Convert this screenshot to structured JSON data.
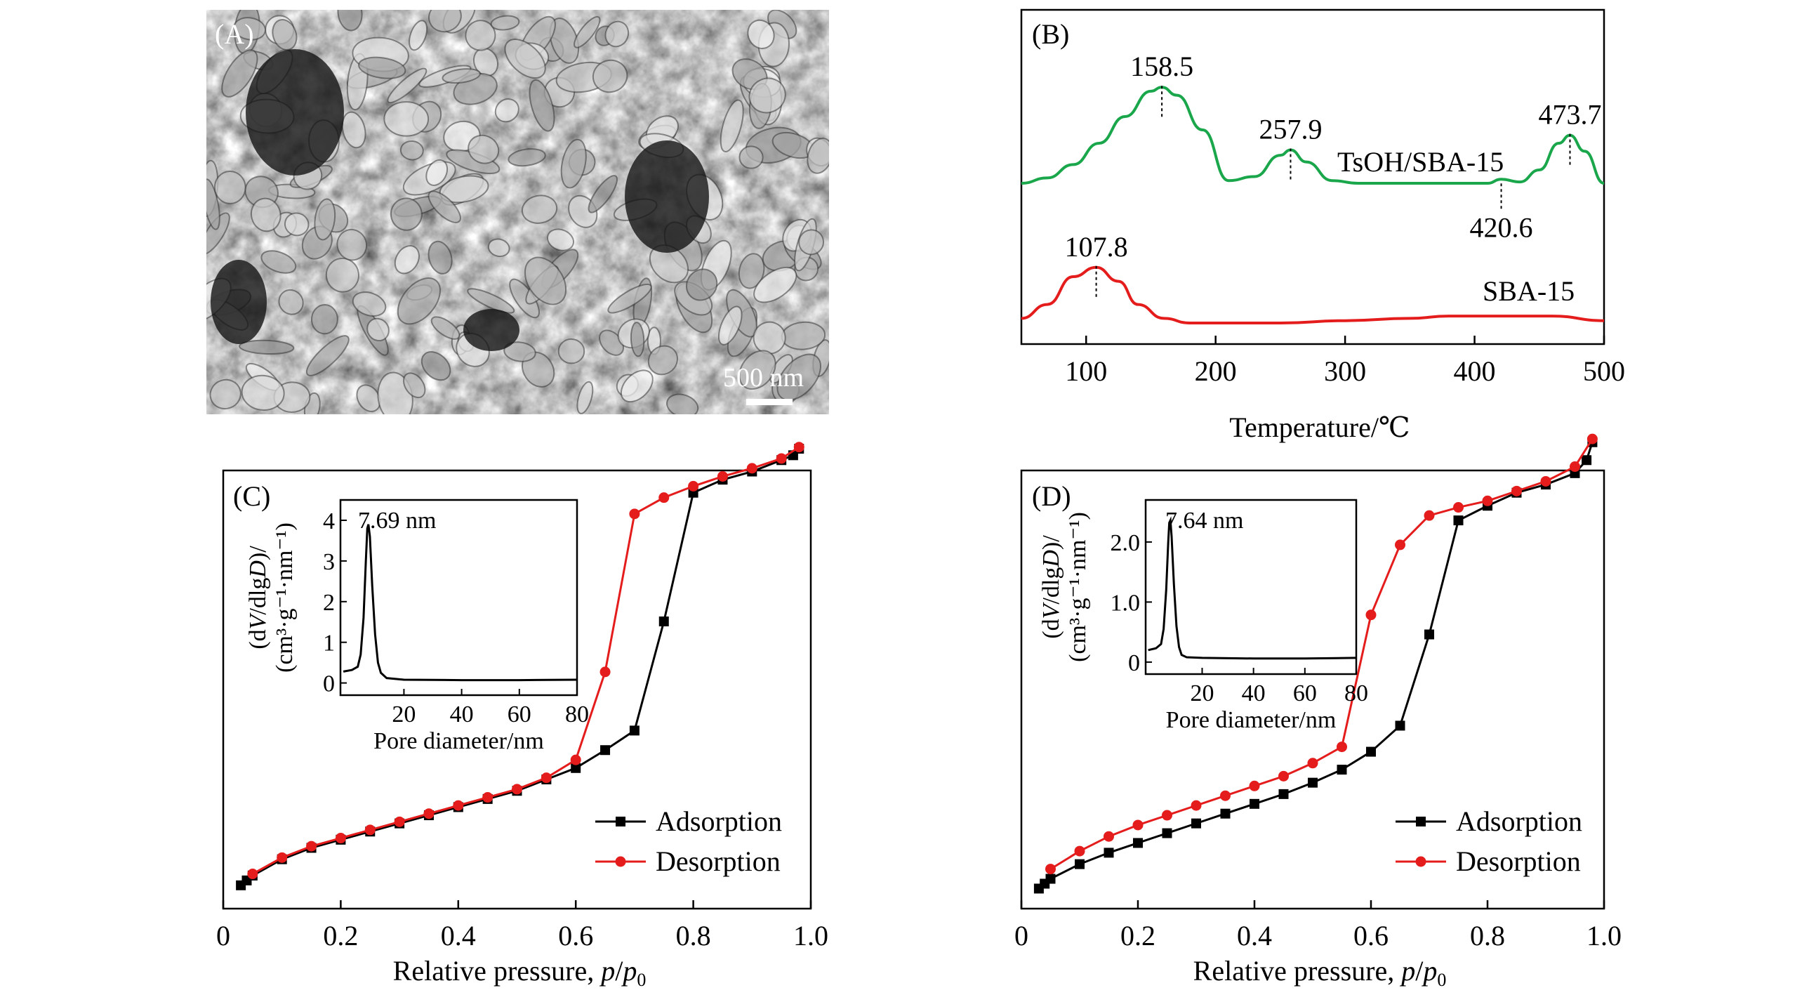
{
  "panels": {
    "A": {
      "label": "(A)",
      "scalebar": "500 nm"
    },
    "B": {
      "label": "(B)"
    },
    "C": {
      "label": "(C)"
    },
    "D": {
      "label": "(D)"
    }
  },
  "colors": {
    "green": "#1aa64a",
    "red": "#e41c1c",
    "black": "#000000",
    "sem_bg": "#5c5c5c"
  },
  "chart_data": [
    {
      "panel": "B",
      "type": "line",
      "xlabel": "Temperature/℃",
      "ylabel": "",
      "xlim": [
        50,
        500
      ],
      "xticks": [
        100,
        200,
        300,
        400,
        500
      ],
      "y_axis_visible": false,
      "series": [
        {
          "name": "TsOH/SBA-15",
          "color": "green",
          "x": [
            50,
            70,
            90,
            110,
            130,
            150,
            158.5,
            170,
            190,
            210,
            230,
            250,
            257.9,
            270,
            290,
            310,
            330,
            350,
            370,
            390,
            410,
            420.6,
            435,
            450,
            465,
            473.7,
            485,
            500
          ],
          "y": [
            0.1,
            0.14,
            0.24,
            0.4,
            0.6,
            0.79,
            0.82,
            0.76,
            0.5,
            0.12,
            0.15,
            0.31,
            0.35,
            0.26,
            0.12,
            0.1,
            0.1,
            0.1,
            0.1,
            0.1,
            0.1,
            0.13,
            0.11,
            0.2,
            0.4,
            0.46,
            0.34,
            0.1
          ]
        },
        {
          "name": "SBA-15",
          "color": "red",
          "x": [
            50,
            70,
            90,
            107.8,
            125,
            140,
            160,
            180,
            200,
            250,
            300,
            350,
            380,
            420,
            460,
            500
          ],
          "y": [
            0.02,
            0.08,
            0.2,
            0.24,
            0.18,
            0.08,
            0.02,
            0.0,
            0.0,
            0.0,
            0.01,
            0.02,
            0.03,
            0.03,
            0.03,
            0.01
          ]
        }
      ],
      "annotations": [
        {
          "text": "158.5",
          "x": 158.5,
          "series": 0
        },
        {
          "text": "257.9",
          "x": 257.9,
          "series": 0
        },
        {
          "text": "473.7",
          "x": 473.7,
          "series": 0
        },
        {
          "text": "420.6",
          "x": 420.6,
          "series": 0
        },
        {
          "text": "107.8",
          "x": 107.8,
          "series": 1
        }
      ]
    },
    {
      "panel": "C",
      "type": "line",
      "xlabel_main": "Relative pressure, ",
      "xlabel_p": "p",
      "xlabel_p0": "p",
      "xlabel_sub": "0",
      "xlim": [
        0,
        1.0
      ],
      "xticks": [
        "0",
        "0.2",
        "0.4",
        "0.6",
        "0.8",
        "1.0"
      ],
      "xtick_values": [
        0,
        0.2,
        0.4,
        0.6,
        0.8,
        1.0
      ],
      "legend": "bottom-right",
      "series": [
        {
          "name": "Adsorption",
          "color": "black",
          "marker": "square",
          "x": [
            0.03,
            0.04,
            0.05,
            0.1,
            0.15,
            0.2,
            0.25,
            0.3,
            0.35,
            0.4,
            0.45,
            0.5,
            0.55,
            0.6,
            0.65,
            0.7,
            0.75,
            0.8,
            0.85,
            0.9,
            0.95,
            0.97,
            0.98
          ],
          "y": [
            0.1,
            0.13,
            0.16,
            0.26,
            0.33,
            0.38,
            0.43,
            0.48,
            0.53,
            0.58,
            0.63,
            0.68,
            0.75,
            0.82,
            0.93,
            1.05,
            1.72,
            2.51,
            2.59,
            2.64,
            2.71,
            2.74,
            2.78
          ]
        },
        {
          "name": "Desorption",
          "color": "red",
          "marker": "circle",
          "x": [
            0.98,
            0.95,
            0.9,
            0.85,
            0.8,
            0.75,
            0.7,
            0.65,
            0.6,
            0.55,
            0.5,
            0.45,
            0.4,
            0.35,
            0.3,
            0.25,
            0.2,
            0.15,
            0.1,
            0.05
          ],
          "y": [
            2.79,
            2.72,
            2.66,
            2.61,
            2.55,
            2.48,
            2.38,
            1.41,
            0.87,
            0.76,
            0.69,
            0.64,
            0.59,
            0.54,
            0.49,
            0.44,
            0.39,
            0.34,
            0.27,
            0.17
          ]
        }
      ],
      "ylim": [
        0,
        2.95
      ],
      "inset": {
        "ylabel_1": "(d",
        "ylabel_V": "V",
        "ylabel_2": "/dlg",
        "ylabel_D": "D",
        "ylabel_3": ")/",
        "ylabel_units": "(cm³·g⁻¹·nm⁻¹)",
        "xlabel": "Pore diameter/nm",
        "peak_label": "7.69 nm",
        "xlim": [
          -2,
          80
        ],
        "ylim": [
          -0.3,
          4.5
        ],
        "xticks": [
          "20",
          "40",
          "60",
          "80"
        ],
        "xtick_values": [
          20,
          40,
          60,
          80
        ],
        "yticks": [
          "0",
          "1",
          "2",
          "3",
          "4"
        ],
        "ytick_values": [
          0,
          1,
          2,
          3,
          4
        ],
        "x": [
          -1,
          2,
          4,
          5,
          6,
          6.8,
          7.3,
          7.69,
          8.2,
          9,
          10,
          11,
          12,
          14,
          20,
          40,
          60,
          80
        ],
        "y": [
          0.28,
          0.32,
          0.4,
          0.7,
          1.6,
          3.0,
          3.8,
          3.9,
          3.6,
          2.4,
          1.2,
          0.5,
          0.25,
          0.12,
          0.08,
          0.07,
          0.07,
          0.08
        ]
      }
    },
    {
      "panel": "D",
      "type": "line",
      "xlabel_main": "Relative pressure, ",
      "xlabel_p": "p",
      "xlabel_p0": "p",
      "xlabel_sub": "0",
      "xlim": [
        0,
        1.0
      ],
      "xticks": [
        "0",
        "0.2",
        "0.4",
        "0.6",
        "0.8",
        "1.0"
      ],
      "xtick_values": [
        0,
        0.2,
        0.4,
        0.6,
        0.8,
        1.0
      ],
      "legend": "bottom-right",
      "series": [
        {
          "name": "Adsorption",
          "color": "black",
          "marker": "square",
          "x": [
            0.03,
            0.04,
            0.05,
            0.1,
            0.15,
            0.2,
            0.25,
            0.3,
            0.35,
            0.4,
            0.45,
            0.5,
            0.55,
            0.6,
            0.65,
            0.7,
            0.75,
            0.8,
            0.85,
            0.9,
            0.95,
            0.97,
            0.98
          ],
          "y": [
            0.08,
            0.11,
            0.14,
            0.23,
            0.3,
            0.36,
            0.42,
            0.48,
            0.54,
            0.6,
            0.66,
            0.73,
            0.81,
            0.92,
            1.08,
            1.64,
            2.34,
            2.43,
            2.51,
            2.56,
            2.63,
            2.71,
            2.82
          ]
        },
        {
          "name": "Desorption",
          "color": "red",
          "marker": "circle",
          "x": [
            0.98,
            0.95,
            0.9,
            0.85,
            0.8,
            0.75,
            0.7,
            0.65,
            0.6,
            0.55,
            0.5,
            0.45,
            0.4,
            0.35,
            0.3,
            0.25,
            0.2,
            0.15,
            0.1,
            0.05
          ],
          "y": [
            2.84,
            2.67,
            2.58,
            2.52,
            2.46,
            2.42,
            2.37,
            2.19,
            1.76,
            0.95,
            0.85,
            0.77,
            0.71,
            0.65,
            0.59,
            0.53,
            0.47,
            0.4,
            0.31,
            0.2
          ]
        }
      ],
      "ylim": [
        0,
        2.95
      ],
      "inset": {
        "ylabel_1": "(d",
        "ylabel_V": "V",
        "ylabel_2": "/dlg",
        "ylabel_D": "D",
        "ylabel_3": ")/",
        "ylabel_units": "(cm³·g⁻¹·nm⁻¹)",
        "xlabel": "Pore diameter/nm",
        "peak_label": "7.64 nm",
        "xlim": [
          -2,
          80
        ],
        "ylim": [
          -0.2,
          2.7
        ],
        "xticks": [
          "20",
          "40",
          "60",
          "80"
        ],
        "xtick_values": [
          20,
          40,
          60,
          80
        ],
        "yticks": [
          "0",
          "1.0",
          "2.0"
        ],
        "ytick_values": [
          0,
          1.0,
          2.0
        ],
        "x": [
          -1,
          2,
          4,
          5,
          6,
          6.8,
          7.2,
          7.64,
          8.1,
          9,
          10,
          11,
          12,
          14,
          20,
          40,
          60,
          80
        ],
        "y": [
          0.2,
          0.23,
          0.3,
          0.55,
          1.2,
          2.0,
          2.32,
          2.36,
          2.1,
          1.3,
          0.6,
          0.25,
          0.12,
          0.08,
          0.07,
          0.06,
          0.06,
          0.07
        ]
      }
    }
  ]
}
